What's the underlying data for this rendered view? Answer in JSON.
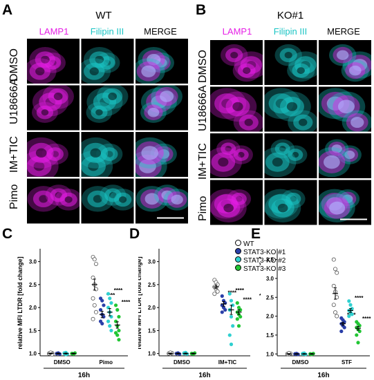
{
  "panels": {
    "A": {
      "letter": "A",
      "title": "WT",
      "channels": [
        "LAMP1",
        "Filipin III",
        "MERGE"
      ],
      "conditions": [
        "DMSO",
        "U18666A",
        "IM+TIC",
        "Pimo"
      ]
    },
    "B": {
      "letter": "B",
      "title": "KO#1",
      "channels": [
        "LAMP1",
        "Filipin III",
        "MERGE"
      ],
      "conditions": [
        "DMSO",
        "U18666A",
        "IM+TIC",
        "Pimo"
      ]
    }
  },
  "colors": {
    "lamp1": "#e61ee6",
    "filipin": "#19c4c4",
    "merge": "#000000",
    "wt": "#ffffff",
    "ko1": "#2a3fa8",
    "ko2": "#2fd0d0",
    "ko3": "#22c634"
  },
  "legend": [
    "WT",
    "STAT3-KO #1",
    "STAT3-KO #2",
    "STAT3-KO #3"
  ],
  "chart_data": [
    {
      "panel": "C",
      "type": "scatter",
      "ylabel": "relative MFI LTDR [fold change]",
      "xlabel": "16h",
      "categories": [
        "DMSO",
        "Pimo"
      ],
      "yticks": [
        1.0,
        1.5,
        2.0,
        2.5,
        3.0
      ],
      "ylim": [
        0.95,
        3.25
      ],
      "groups": [
        {
          "category": "DMSO",
          "series": [
            {
              "name": "WT",
              "values": [
                1.0,
                0.99,
                1.01,
                1.0,
                1.02,
                0.98
              ],
              "mean": 1.0,
              "sem": 0.01
            },
            {
              "name": "STAT3-KO #1",
              "values": [
                1.0,
                1.01,
                0.99,
                1.0
              ],
              "mean": 1.0,
              "sem": 0.01
            },
            {
              "name": "STAT3-KO #2",
              "values": [
                1.0,
                1.02,
                0.99,
                1.01,
                0.98
              ],
              "mean": 1.0,
              "sem": 0.01
            },
            {
              "name": "STAT3-KO #3",
              "values": [
                1.0,
                0.99,
                1.01,
                1.0
              ],
              "mean": 1.0,
              "sem": 0.01
            }
          ]
        },
        {
          "category": "Pimo",
          "series": [
            {
              "name": "WT",
              "values": [
                3.1,
                3.05,
                2.95,
                2.65,
                2.5,
                2.4,
                2.2,
                2.05,
                1.9,
                1.75
              ],
              "mean": 2.5,
              "sem": 0.12
            },
            {
              "name": "STAT3-KO #1",
              "values": [
                2.2,
                2.15,
                2.05,
                1.95,
                1.85,
                1.8,
                1.7,
                1.65
              ],
              "mean": 1.85,
              "sem": 0.07,
              "sig": "****"
            },
            {
              "name": "STAT3-KO #2",
              "values": [
                2.3,
                2.2,
                2.1,
                2.0,
                1.9,
                1.8,
                1.7,
                1.6,
                1.5
              ],
              "mean": 1.9,
              "sem": 0.08,
              "sig": "****"
            },
            {
              "name": "STAT3-KO #3",
              "values": [
                2.05,
                1.95,
                1.8,
                1.7,
                1.6,
                1.5,
                1.45,
                1.4,
                1.3
              ],
              "mean": 1.62,
              "sem": 0.07,
              "sig": "****"
            }
          ]
        }
      ]
    },
    {
      "panel": "D",
      "type": "scatter",
      "ylabel": "relative MFI LTDR [fold change]",
      "xlabel": "16h",
      "categories": [
        "DMSO",
        "IM+TIC"
      ],
      "yticks": [
        1.0,
        1.5,
        2.0,
        2.5,
        3.0
      ],
      "ylim": [
        0.95,
        3.25
      ],
      "groups": [
        {
          "category": "DMSO",
          "series": [
            {
              "name": "WT",
              "values": [
                1.0,
                0.99,
                1.01,
                1.0,
                1.02
              ],
              "mean": 1.0,
              "sem": 0.01
            },
            {
              "name": "STAT3-KO #1",
              "values": [
                1.0,
                1.01,
                0.99,
                1.0
              ],
              "mean": 1.0,
              "sem": 0.01
            },
            {
              "name": "STAT3-KO #2",
              "values": [
                1.0,
                1.02,
                0.99,
                1.01
              ],
              "mean": 1.0,
              "sem": 0.01
            },
            {
              "name": "STAT3-KO #3",
              "values": [
                1.0,
                0.99,
                1.01,
                1.0
              ],
              "mean": 1.0,
              "sem": 0.01
            }
          ]
        },
        {
          "category": "IM+TIC",
          "series": [
            {
              "name": "WT",
              "values": [
                2.6,
                2.55,
                2.5,
                2.45,
                2.4,
                2.35,
                2.3
              ],
              "mean": 2.45,
              "sem": 0.04
            },
            {
              "name": "STAT3-KO #1",
              "values": [
                2.25,
                2.15,
                2.1,
                2.05,
                2.0,
                1.95,
                1.9
              ],
              "mean": 2.08,
              "sem": 0.05,
              "sig": "****"
            },
            {
              "name": "STAT3-KO #2",
              "values": [
                2.3,
                2.15,
                2.05,
                1.95,
                1.8,
                1.6,
                1.4,
                1.2
              ],
              "mean": 1.95,
              "sem": 0.1,
              "sig": "****"
            },
            {
              "name": "STAT3-KO #3",
              "values": [
                2.1,
                2.0,
                1.95,
                1.9,
                1.85,
                1.8,
                1.75,
                1.6
              ],
              "mean": 1.9,
              "sem": 0.05,
              "sig": "****"
            }
          ]
        }
      ]
    },
    {
      "panel": "E",
      "type": "scatter",
      "ylabel": "relative MFI LTDR [fold change]",
      "xlabel": "16h",
      "categories": [
        "DMSO",
        "STF"
      ],
      "yticks": [
        1.0,
        1.5,
        2.0,
        2.5,
        3.0,
        3.5
      ],
      "ylim": [
        0.95,
        3.75
      ],
      "groups": [
        {
          "category": "DMSO",
          "series": [
            {
              "name": "WT",
              "values": [
                1.0,
                0.99,
                1.01,
                1.0,
                1.02
              ],
              "mean": 1.0,
              "sem": 0.01
            },
            {
              "name": "STAT3-KO #1",
              "values": [
                1.0,
                1.01,
                0.99,
                1.0
              ],
              "mean": 1.0,
              "sem": 0.01
            },
            {
              "name": "STAT3-KO #2",
              "values": [
                1.0,
                1.02,
                0.99,
                1.01,
                1.0
              ],
              "mean": 1.0,
              "sem": 0.01
            },
            {
              "name": "STAT3-KO #3",
              "values": [
                1.0,
                0.99,
                1.01,
                1.0
              ],
              "mean": 1.0,
              "sem": 0.01
            }
          ]
        },
        {
          "category": "STF",
          "series": [
            {
              "name": "WT",
              "values": [
                3.5,
                3.25,
                3.15,
                2.8,
                2.65,
                2.5,
                2.3,
                2.1,
                2.0
              ],
              "mean": 2.6,
              "sem": 0.15
            },
            {
              "name": "STAT3-KO #1",
              "values": [
                1.95,
                1.9,
                1.85,
                1.8,
                1.75,
                1.7,
                1.6
              ],
              "mean": 1.8,
              "sem": 0.04,
              "sig": "****"
            },
            {
              "name": "STAT3-KO #2",
              "values": [
                2.4,
                2.3,
                2.2,
                2.15,
                2.1,
                2.05,
                2.0
              ],
              "mean": 2.15,
              "sem": 0.05,
              "sig": "****"
            },
            {
              "name": "STAT3-KO #3",
              "values": [
                1.85,
                1.8,
                1.75,
                1.7,
                1.65,
                1.6,
                1.5,
                1.3
              ],
              "mean": 1.68,
              "sem": 0.05,
              "sig": "****"
            }
          ]
        }
      ]
    }
  ],
  "chart_letters": [
    "C",
    "D",
    "E"
  ]
}
